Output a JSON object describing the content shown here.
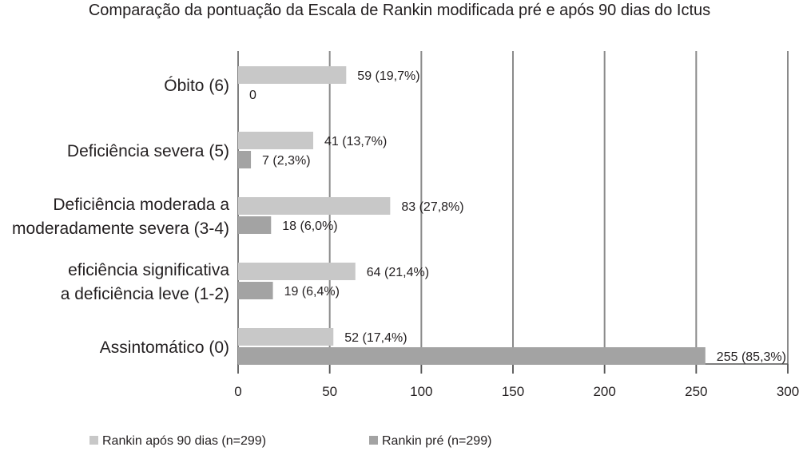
{
  "chart_data": {
    "type": "bar",
    "orientation": "horizontal",
    "title": "Comparação da pontuação da Escala de Rankin modificada pré e após 90 dias do Ictus",
    "xlabel": "",
    "ylabel": "",
    "xlim": [
      0,
      300
    ],
    "xticks": [
      "0",
      "50",
      "100",
      "150",
      "200",
      "250",
      "300"
    ],
    "grid": "vertical",
    "legend_position": "bottom",
    "categories": [
      [
        "Óbito (6)"
      ],
      [
        "Deficiência severa (5)"
      ],
      [
        "Deficiência moderada a",
        "moderadamente severa (3-4)"
      ],
      [
        "eficiência significativa",
        "a deficiência leve (1-2)"
      ],
      [
        "Assintomático (0)"
      ]
    ],
    "series": [
      {
        "name": "Rankin após 90 dias  (n=299)",
        "color": "#c8c8c8",
        "values": [
          59,
          41,
          83,
          64,
          52
        ],
        "labels": [
          "59 (19,7%)",
          "41 (13,7%)",
          "83 (27,8%)",
          "64 (21,4%)",
          "52 (17,4%)"
        ]
      },
      {
        "name": "Rankin pré (n=299)",
        "color": "#a3a3a3",
        "values": [
          0,
          7,
          18,
          19,
          255
        ],
        "labels": [
          "0",
          "7 (2,3%)",
          "18 (6,0%)",
          "19 (6,4%)",
          "255 (85,3%)"
        ]
      }
    ]
  }
}
